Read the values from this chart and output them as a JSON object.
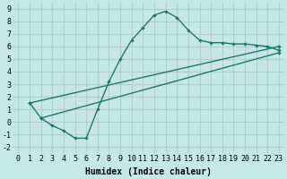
{
  "line1_x": [
    1,
    2,
    3,
    4,
    5,
    6,
    7,
    8,
    9,
    10,
    11,
    12,
    13,
    14,
    15,
    16,
    17,
    18,
    19,
    20,
    21,
    22,
    23
  ],
  "line1_y": [
    1.5,
    0.3,
    -0.3,
    -0.7,
    -1.3,
    -1.3,
    1.0,
    3.2,
    5.0,
    6.5,
    7.5,
    8.5,
    8.8,
    8.3,
    7.3,
    6.5,
    6.3,
    6.3,
    6.2,
    6.2,
    6.1,
    6.0,
    5.7
  ],
  "line2_x": [
    1,
    23
  ],
  "line2_y": [
    1.5,
    6.0
  ],
  "line3_x": [
    2,
    23
  ],
  "line3_y": [
    0.3,
    5.5
  ],
  "line_color": "#1a7a6e",
  "bg_color": "#c5e8e5",
  "grid_color": "#b0d0cd",
  "xlabel": "Humidex (Indice chaleur)",
  "xlim": [
    -0.5,
    23.5
  ],
  "ylim": [
    -2.5,
    9.5
  ],
  "xticks": [
    0,
    1,
    2,
    3,
    4,
    5,
    6,
    7,
    8,
    9,
    10,
    11,
    12,
    13,
    14,
    15,
    16,
    17,
    18,
    19,
    20,
    21,
    22,
    23
  ],
  "yticks": [
    -2,
    -1,
    0,
    1,
    2,
    3,
    4,
    5,
    6,
    7,
    8,
    9
  ],
  "xlabel_fontsize": 7,
  "tick_fontsize": 6
}
